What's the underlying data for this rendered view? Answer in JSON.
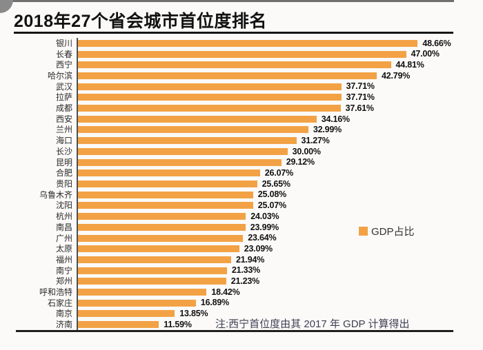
{
  "title": "2018年27个省会城市首位度排名",
  "legend": {
    "label": "GDP占比"
  },
  "note": "注:西宁首位度由其 2017 年 GDP 计算得出",
  "colors": {
    "bar": "#F2A245",
    "axis": "#4f4f4f",
    "title": "#121212",
    "note": "#403f54"
  },
  "chart_data": {
    "type": "bar",
    "orientation": "horizontal",
    "title": "2018年27个省会城市首位度排名",
    "legend": [
      "GDP占比"
    ],
    "legend_position": "right-middle",
    "grid": false,
    "xlim": [
      0,
      50
    ],
    "xlabel": "",
    "ylabel": "",
    "categories": [
      "银川",
      "长春",
      "西宁",
      "哈尔滨",
      "武汉",
      "拉萨",
      "成都",
      "西安",
      "兰州",
      "海口",
      "长沙",
      "昆明",
      "合肥",
      "贵阳",
      "乌鲁木齐",
      "沈阳",
      "杭州",
      "南昌",
      "广州",
      "太原",
      "福州",
      "南宁",
      "郑州",
      "呼和浩特",
      "石家庄",
      "南京",
      "济南"
    ],
    "values": [
      48.66,
      47.0,
      44.81,
      42.79,
      37.71,
      37.71,
      37.61,
      34.16,
      32.99,
      31.27,
      30.0,
      29.12,
      26.07,
      25.65,
      25.08,
      25.07,
      24.03,
      23.99,
      23.64,
      23.09,
      21.94,
      21.33,
      21.23,
      18.42,
      16.89,
      13.85,
      11.59
    ],
    "value_labels": [
      "48.66%",
      "47.00%",
      "44.81%",
      "42.79%",
      "37.71%",
      "37.71%",
      "37.61%",
      "34.16%",
      "32.99%",
      "31.27%",
      "30.00%",
      "29.12%",
      "26.07%",
      "25.65%",
      "25.08%",
      "25.07%",
      "24.03%",
      "23.99%",
      "23.64%",
      "23.09%",
      "21.94%",
      "21.33%",
      "21.23%",
      "18.42%",
      "16.89%",
      "13.85%",
      "11.59%"
    ],
    "note": "注:西宁首位度由其 2017 年 GDP 计算得出"
  }
}
